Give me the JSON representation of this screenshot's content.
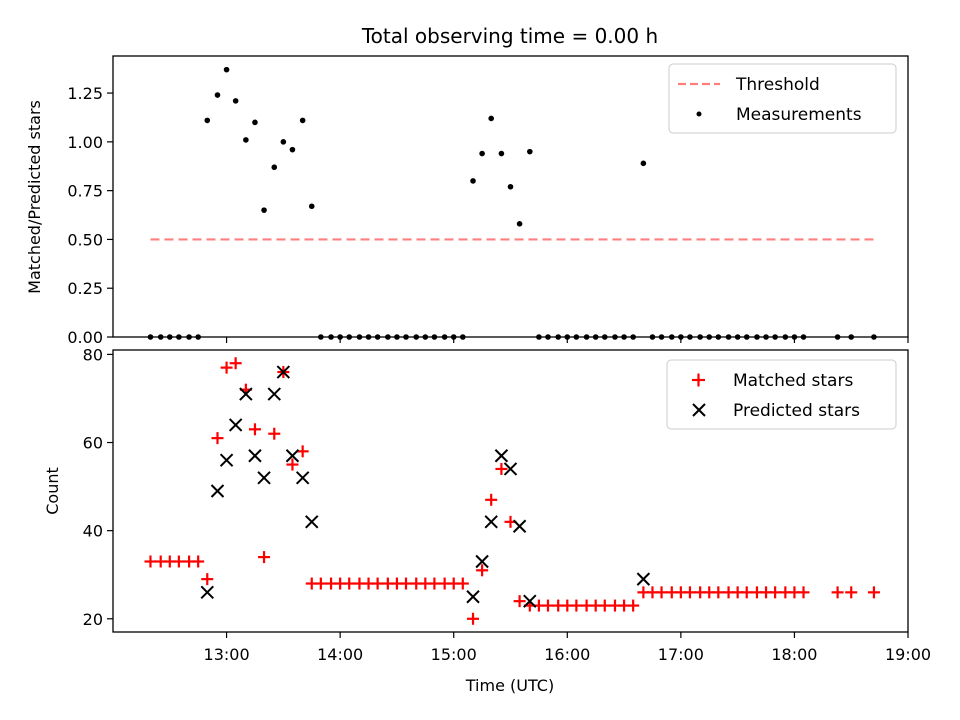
{
  "chart_data": [
    {
      "type": "scatter",
      "title": "Total observing time = 0.00 h",
      "ylabel": "Matched/Predicted stars",
      "xlabel": "",
      "x_range_hours": [
        12.0,
        19.0
      ],
      "ylim": [
        0,
        1.44
      ],
      "yticks": [
        "0.00",
        "0.25",
        "0.50",
        "0.75",
        "1.00",
        "1.25"
      ],
      "ytick_values": [
        0,
        0.25,
        0.5,
        0.75,
        1.0,
        1.25
      ],
      "legend": {
        "position": "top-right",
        "entries": [
          "Threshold",
          "Measurements"
        ]
      },
      "threshold": {
        "name": "Threshold",
        "value": 0.5,
        "x": [
          12.33,
          18.7
        ],
        "color": "#ff7f7f"
      },
      "measurements": {
        "name": "Measurements",
        "color": "#000000",
        "x": [
          12.33,
          12.42,
          12.5,
          12.58,
          12.67,
          12.75,
          12.83,
          12.92,
          13.0,
          13.08,
          13.17,
          13.25,
          13.33,
          13.42,
          13.5,
          13.58,
          13.67,
          13.75,
          13.83,
          13.92,
          14.0,
          14.08,
          14.17,
          14.25,
          14.33,
          14.42,
          14.5,
          14.58,
          14.67,
          14.75,
          14.83,
          14.92,
          15.0,
          15.08,
          15.17,
          15.25,
          15.33,
          15.42,
          15.5,
          15.58,
          15.67,
          15.75,
          15.83,
          15.92,
          16.0,
          16.08,
          16.17,
          16.25,
          16.33,
          16.42,
          16.5,
          16.58,
          16.67,
          16.75,
          16.83,
          16.92,
          17.0,
          17.08,
          17.17,
          17.25,
          17.33,
          17.42,
          17.5,
          17.58,
          17.67,
          17.75,
          17.83,
          17.92,
          18.0,
          18.08,
          18.38,
          18.5,
          18.7
        ],
        "y": [
          0,
          0,
          0,
          0,
          0,
          0,
          1.11,
          1.24,
          1.37,
          1.21,
          1.01,
          1.1,
          0.65,
          0.87,
          1.0,
          0.96,
          1.11,
          0.67,
          0,
          0,
          0,
          0,
          0,
          0,
          0,
          0,
          0,
          0,
          0,
          0,
          0,
          0,
          0,
          0,
          0.8,
          0.94,
          1.12,
          0.94,
          0.77,
          0.58,
          0.95,
          0,
          0,
          0,
          0,
          0,
          0,
          0,
          0,
          0,
          0,
          0,
          0.89,
          0,
          0,
          0,
          0,
          0,
          0,
          0,
          0,
          0,
          0,
          0,
          0,
          0,
          0,
          0,
          0,
          0,
          0,
          0,
          0
        ]
      }
    },
    {
      "type": "scatter",
      "title": "",
      "ylabel": "Count",
      "xlabel": "Time (UTC)",
      "x_range_hours": [
        12.0,
        19.0
      ],
      "xticks": [
        "13:00",
        "14:00",
        "15:00",
        "16:00",
        "17:00",
        "18:00",
        "19:00"
      ],
      "xtick_values": [
        13,
        14,
        15,
        16,
        17,
        18,
        19
      ],
      "ylim": [
        17,
        81
      ],
      "yticks": [
        "20",
        "40",
        "60",
        "80"
      ],
      "ytick_values": [
        20,
        40,
        60,
        80
      ],
      "legend": {
        "position": "top-right",
        "entries": [
          "Matched stars",
          "Predicted stars"
        ]
      },
      "matched": {
        "name": "Matched stars",
        "color": "#ff0000",
        "x": [
          12.33,
          12.42,
          12.5,
          12.58,
          12.67,
          12.75,
          12.83,
          12.92,
          13.0,
          13.08,
          13.17,
          13.25,
          13.33,
          13.42,
          13.5,
          13.58,
          13.67,
          13.75,
          13.83,
          13.92,
          14.0,
          14.08,
          14.17,
          14.25,
          14.33,
          14.42,
          14.5,
          14.58,
          14.67,
          14.75,
          14.83,
          14.92,
          15.0,
          15.08,
          15.17,
          15.25,
          15.33,
          15.42,
          15.5,
          15.58,
          15.67,
          15.75,
          15.83,
          15.92,
          16.0,
          16.08,
          16.17,
          16.25,
          16.33,
          16.42,
          16.5,
          16.58,
          16.67,
          16.75,
          16.83,
          16.92,
          17.0,
          17.08,
          17.17,
          17.25,
          17.33,
          17.42,
          17.5,
          17.58,
          17.67,
          17.75,
          17.83,
          17.92,
          18.0,
          18.08,
          18.38,
          18.5,
          18.7
        ],
        "y": [
          33,
          33,
          33,
          33,
          33,
          33,
          29,
          61,
          77,
          78,
          72,
          63,
          34,
          62,
          76,
          55,
          58,
          28,
          28,
          28,
          28,
          28,
          28,
          28,
          28,
          28,
          28,
          28,
          28,
          28,
          28,
          28,
          28,
          28,
          20,
          31,
          47,
          54,
          42,
          24,
          23,
          23,
          23,
          23,
          23,
          23,
          23,
          23,
          23,
          23,
          23,
          23,
          26,
          26,
          26,
          26,
          26,
          26,
          26,
          26,
          26,
          26,
          26,
          26,
          26,
          26,
          26,
          26,
          26,
          26,
          26,
          26,
          26
        ]
      },
      "predicted": {
        "name": "Predicted stars",
        "color": "#000000",
        "x": [
          12.83,
          12.92,
          13.0,
          13.08,
          13.17,
          13.25,
          13.33,
          13.42,
          13.5,
          13.58,
          13.67,
          13.75,
          15.17,
          15.25,
          15.33,
          15.42,
          15.5,
          15.58,
          15.67,
          16.67
        ],
        "y": [
          26,
          49,
          56,
          64,
          71,
          57,
          52,
          71,
          76,
          57,
          52,
          42,
          25,
          33,
          42,
          57,
          54,
          41,
          24,
          29
        ]
      }
    }
  ]
}
